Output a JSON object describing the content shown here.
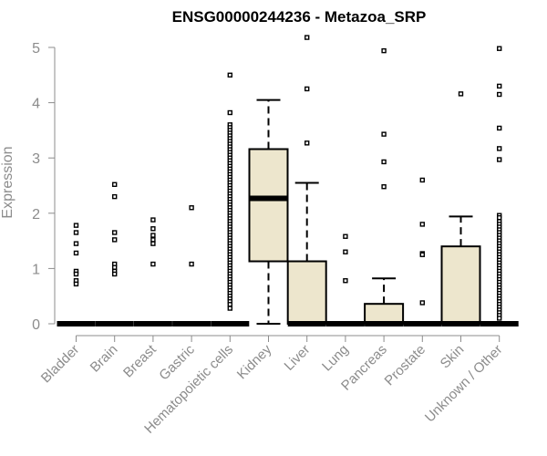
{
  "chart_data": {
    "type": "boxplot",
    "title": "ENSG00000244236 - Metazoa_SRP",
    "xlabel": "",
    "ylabel": "Expression",
    "ylim": [
      0,
      5.2
    ],
    "yticks": [
      0,
      1,
      2,
      3,
      4,
      5
    ],
    "grid": false,
    "colors": {
      "box_fill": "#ede6cd",
      "axis": "#8c8c8c",
      "text_gray": "#8c8c8c",
      "stroke": "#000000"
    },
    "categories": [
      "Bladder",
      "Brain",
      "Breast",
      "Gastric",
      "Hematopoietic cells",
      "Kidney",
      "Liver",
      "Lung",
      "Pancreas",
      "Prostate",
      "Skin",
      "Unknown / Other"
    ],
    "groups": [
      {
        "name": "Bladder",
        "q1": 0,
        "median": 0,
        "q3": 0,
        "whisker_low": 0,
        "whisker_high": 0,
        "outliers": [
          1.78,
          1.65,
          1.45,
          1.28,
          0.95,
          0.9,
          0.78,
          0.72
        ]
      },
      {
        "name": "Brain",
        "q1": 0,
        "median": 0,
        "q3": 0,
        "whisker_low": 0,
        "whisker_high": 0,
        "outliers": [
          2.52,
          2.3,
          1.65,
          1.52,
          1.08,
          1.02,
          0.95,
          0.9
        ]
      },
      {
        "name": "Breast",
        "q1": 0,
        "median": 0,
        "q3": 0,
        "whisker_low": 0,
        "whisker_high": 0,
        "outliers": [
          1.88,
          1.72,
          1.6,
          1.52,
          1.45,
          1.08
        ]
      },
      {
        "name": "Gastric",
        "q1": 0,
        "median": 0,
        "q3": 0,
        "whisker_low": 0,
        "whisker_high": 0,
        "outliers": [
          2.1,
          1.08
        ]
      },
      {
        "name": "Hematopoietic cells",
        "q1": 0,
        "median": 0,
        "q3": 0,
        "whisker_low": 0,
        "whisker_high": 0,
        "outliers": [
          4.5,
          3.82,
          3.6,
          3.55,
          3.5,
          3.45,
          3.4,
          3.35,
          3.3,
          3.25,
          3.2,
          3.15,
          3.1,
          3.05,
          3.0,
          2.95,
          2.9,
          2.85,
          2.8,
          2.75,
          2.7,
          2.65,
          2.6,
          2.55,
          2.5,
          2.45,
          2.4,
          2.35,
          2.3,
          2.25,
          2.2,
          2.15,
          2.1,
          2.05,
          2.0,
          1.95,
          1.9,
          1.85,
          1.8,
          1.75,
          1.7,
          1.65,
          1.6,
          1.55,
          1.5,
          1.45,
          1.4,
          1.35,
          1.3,
          1.25,
          1.2,
          1.15,
          1.1,
          1.05,
          1.0,
          0.95,
          0.9,
          0.85,
          0.8,
          0.75,
          0.7,
          0.65,
          0.6,
          0.55,
          0.5,
          0.45,
          0.4,
          0.35,
          0.28
        ]
      },
      {
        "name": "Kidney",
        "q1": 1.13,
        "median": 2.27,
        "q3": 3.16,
        "whisker_low": 0,
        "whisker_high": 4.05,
        "outliers": []
      },
      {
        "name": "Liver",
        "q1": 0,
        "median": 0,
        "q3": 1.13,
        "whisker_low": 0,
        "whisker_high": 2.55,
        "outliers": [
          5.18,
          4.25,
          3.27
        ]
      },
      {
        "name": "Lung",
        "q1": 0,
        "median": 0,
        "q3": 0,
        "whisker_low": 0,
        "whisker_high": 0,
        "outliers": [
          1.58,
          1.3,
          0.78
        ]
      },
      {
        "name": "Pancreas",
        "q1": 0,
        "median": 0,
        "q3": 0.36,
        "whisker_low": 0,
        "whisker_high": 0.82,
        "outliers": [
          4.94,
          3.43,
          2.93,
          2.48
        ]
      },
      {
        "name": "Prostate",
        "q1": 0,
        "median": 0,
        "q3": 0,
        "whisker_low": 0,
        "whisker_high": 0,
        "outliers": [
          2.6,
          1.8,
          1.27,
          1.25,
          0.38
        ]
      },
      {
        "name": "Skin",
        "q1": 0,
        "median": 0,
        "q3": 1.4,
        "whisker_low": 0,
        "whisker_high": 1.94,
        "outliers": [
          4.16
        ]
      },
      {
        "name": "Unknown / Other",
        "q1": 0,
        "median": 0,
        "q3": 0,
        "whisker_low": 0,
        "whisker_high": 0,
        "outliers": [
          4.98,
          4.3,
          4.15,
          3.54,
          3.17,
          2.97,
          1.96,
          1.92,
          1.85,
          1.8,
          1.75,
          1.7,
          1.65,
          1.6,
          1.55,
          1.5,
          1.45,
          1.4,
          1.35,
          1.3,
          1.25,
          1.2,
          1.15,
          1.1,
          1.05,
          1.0,
          0.95,
          0.9,
          0.85,
          0.8,
          0.75,
          0.7,
          0.65,
          0.6,
          0.55,
          0.5,
          0.45,
          0.4,
          0.35,
          0.3,
          0.25,
          0.2,
          0.15,
          0.1
        ]
      }
    ]
  }
}
